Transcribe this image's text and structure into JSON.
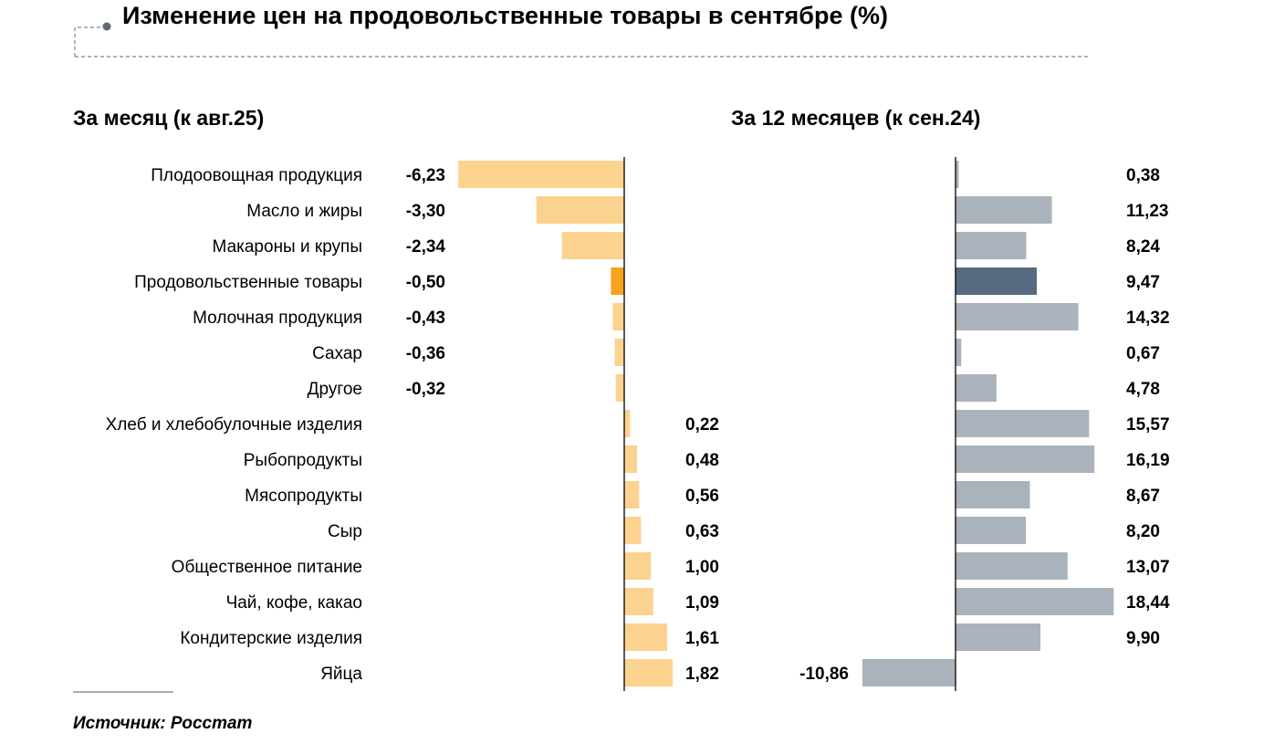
{
  "title": "Изменение цен на продовольственные товары в сентябре (%)",
  "source": "Источник: Росстат",
  "colors": {
    "left_bar": "#fcd28f",
    "left_highlight": "#f6a31e",
    "right_bar": "#aab3bb",
    "right_highlight": "#566b7f"
  },
  "chart_data": [
    {
      "type": "bar",
      "orientation": "horizontal",
      "title": "За месяц (к авг.25)",
      "categories": [
        "Плодоовощная продукция",
        "Масло и жиры",
        "Макароны и крупы",
        "Продовольственные товары",
        "Молочная продукция",
        "Сахар",
        "Другое",
        "Хлеб и хлебобулочные изделия",
        "Рыбопродукты",
        "Мясопродукты",
        "Сыр",
        "Общественное питание",
        "Чай, кофе, какао",
        "Кондитерские изделия",
        "Яйца"
      ],
      "values": [
        -6.23,
        -3.3,
        -2.34,
        -0.5,
        -0.43,
        -0.36,
        -0.32,
        0.22,
        0.48,
        0.56,
        0.63,
        1.0,
        1.09,
        1.61,
        1.82
      ],
      "labels": [
        "-6,23",
        "-3,30",
        "-2,34",
        "-0,50",
        "-0,43",
        "-0,36",
        "-0,32",
        "0,22",
        "0,48",
        "0,56",
        "0,63",
        "1,00",
        "1,09",
        "1,61",
        "1,82"
      ],
      "highlight_index": 3
    },
    {
      "type": "bar",
      "orientation": "horizontal",
      "title": "За 12 месяцев (к сен.24)",
      "values": [
        0.38,
        11.23,
        8.24,
        9.47,
        14.32,
        0.67,
        4.78,
        15.57,
        16.19,
        8.67,
        8.2,
        13.07,
        18.44,
        9.9,
        -10.86
      ],
      "labels": [
        "0,38",
        "11,23",
        "8,24",
        "9,47",
        "14,32",
        "0,67",
        "4,78",
        "15,57",
        "16,19",
        "8,67",
        "8,20",
        "13,07",
        "18,44",
        "9,90",
        "-10,86"
      ],
      "highlight_index": 3
    }
  ]
}
